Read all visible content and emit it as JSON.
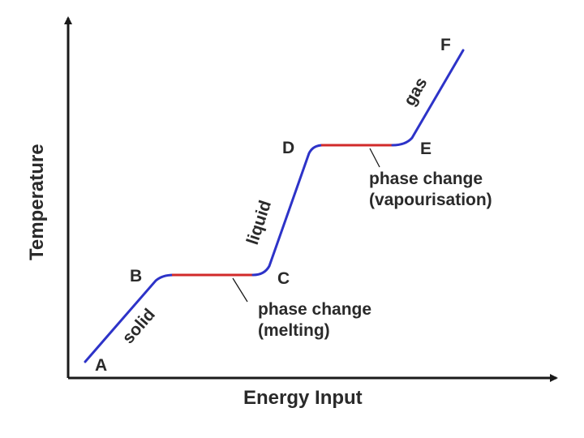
{
  "axes": {
    "x_label": "Energy Input",
    "y_label": "Temperature"
  },
  "points": {
    "a": "A",
    "b": "B",
    "c": "C",
    "d": "D",
    "e": "E",
    "f": "F"
  },
  "regions": {
    "solid": "solid",
    "liquid": "liquid",
    "gas": "gas"
  },
  "annotations": {
    "melting_line1": "phase change",
    "melting_line2": "(melting)",
    "vapour_line1": "phase change",
    "vapour_line2": "(vapourisation)"
  },
  "colors": {
    "axis": "#1a1a1a",
    "heating_segment": "#2d33c8",
    "phase_change_segment": "#d12a2a",
    "text": "#2a2a2a"
  }
}
